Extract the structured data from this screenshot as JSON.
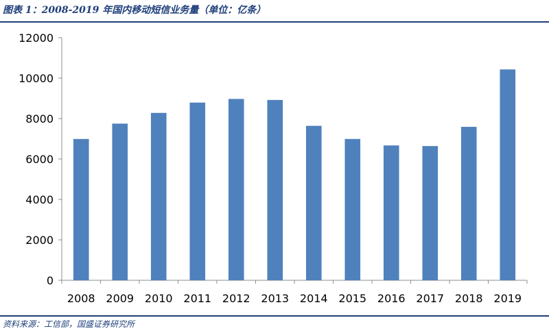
{
  "header": {
    "title": "图表 1：2008-2019 年国内移动短信业务量（单位：亿条）"
  },
  "footer": {
    "source": "资料来源：工信部，国盛证券研究所"
  },
  "chart_data": {
    "type": "bar",
    "categories": [
      "2008",
      "2009",
      "2010",
      "2011",
      "2012",
      "2013",
      "2014",
      "2015",
      "2016",
      "2017",
      "2018",
      "2019"
    ],
    "values": [
      6990,
      7750,
      8280,
      8790,
      8970,
      8920,
      7640,
      6990,
      6670,
      6640,
      7590,
      10430
    ],
    "title": "2008-2019 年国内移动短信业务量（单位：亿条）",
    "xlabel": "",
    "ylabel": "",
    "ylim": [
      0,
      12000
    ],
    "yticks": [
      0,
      2000,
      4000,
      6000,
      8000,
      10000,
      12000
    ],
    "grid": false,
    "legend": "none",
    "bar_color": "#4f81bd"
  }
}
